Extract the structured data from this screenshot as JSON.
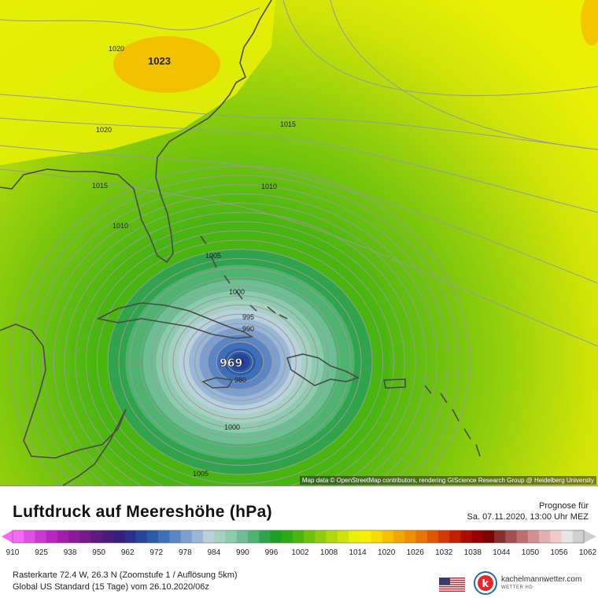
{
  "map": {
    "attribution": "Map data © OpenStreetMap contributors, rendering GIScience Research Group @ Heidelberg University",
    "isobar_labels": [
      "1020",
      "1023",
      "1020",
      "1015",
      "1015",
      "1010",
      "1010",
      "1005",
      "1000",
      "995",
      "990",
      "969",
      "980",
      "1000",
      "1005"
    ],
    "center_label": "969"
  },
  "legend": {
    "title": "Luftdruck auf Meereshöhe (hPa)",
    "forecast_label": "Prognose für",
    "forecast_date": "Sa. 07.11.2020, 13:00 Uhr MEZ",
    "ticks": [
      "910",
      "925",
      "938",
      "950",
      "962",
      "972",
      "978",
      "984",
      "990",
      "996",
      "1002",
      "1008",
      "1014",
      "1020",
      "1026",
      "1032",
      "1038",
      "1044",
      "1050",
      "1056",
      "1062"
    ],
    "colors": [
      "#f36af5",
      "#e04fe4",
      "#cc37d3",
      "#b726c0",
      "#a21ead",
      "#8b1b9c",
      "#75198c",
      "#5d1a80",
      "#4a1b7a",
      "#3a1e7e",
      "#2b2f8b",
      "#27469a",
      "#2b5aa9",
      "#3f6fb7",
      "#5b86c3",
      "#7c9fcf",
      "#9ab7d7",
      "#b8d1dd",
      "#a5d0c2",
      "#8ccbae",
      "#6dbf93",
      "#4db36e",
      "#2fa44a",
      "#1e9e22",
      "#2caa14",
      "#49b60f",
      "#6cc20d",
      "#8fcd0c",
      "#b1d80b",
      "#cfe308",
      "#eaf004",
      "#f6f000",
      "#f6da00",
      "#f3c100",
      "#f0a900",
      "#ec9000",
      "#e67400",
      "#de5700",
      "#d43a00",
      "#c32000",
      "#ad0d00",
      "#950000",
      "#7d0303",
      "#8a2d2d",
      "#a44f4f",
      "#bd6f6f",
      "#d39090",
      "#e6b0b0",
      "#f1c9c9",
      "#e6e6e6",
      "#cfcfcf"
    ],
    "raster_info": "Rasterkarte 72.4 W, 26.3 N (Zoomstufe 1 / Auflösung 5km)",
    "model_info": "Global US Standard (15 Tage) vom 26.10.2020/06z",
    "brand_name": "kachelmannwetter.com",
    "brand_sub": "WETTER HD",
    "flag_icon": "us-flag-icon",
    "logo_icon": "kachelmann-logo-icon"
  }
}
